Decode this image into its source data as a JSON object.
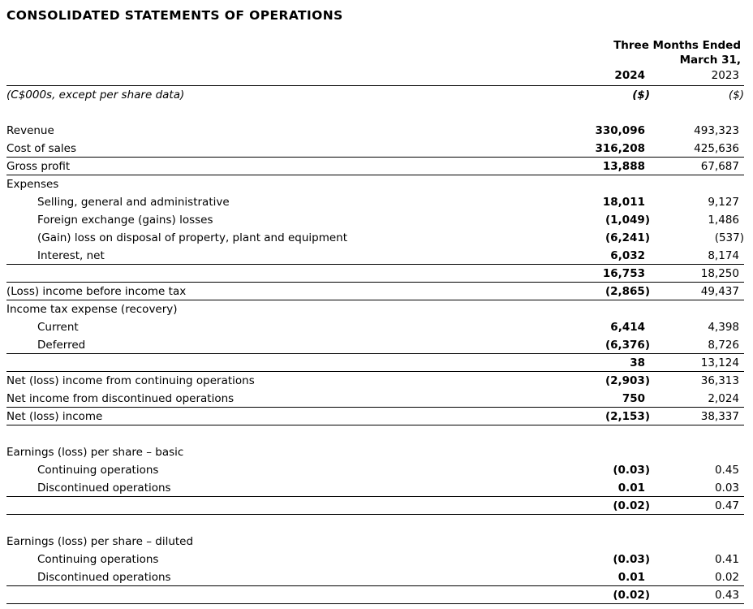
{
  "title": "CONSOLIDATED STATEMENTS OF OPERATIONS",
  "colors": {
    "text": "#000000",
    "rule": "#000000",
    "background": "#ffffff"
  },
  "header": {
    "period_line1": "Three Months Ended",
    "period_line2": "March 31,",
    "year_2024": "2024",
    "year_2023": "2023",
    "unit_note": "(C$000s, except per share data)",
    "currency_2024": "($)",
    "currency_2023": "($)"
  },
  "table": {
    "columns": [
      "line_item",
      "2024",
      "2023"
    ],
    "rows": [
      {
        "label": "Revenue",
        "v2024": "330,096",
        "v2023": "493,323",
        "indent": 0,
        "rule": false
      },
      {
        "label": "Cost of sales",
        "v2024": "316,208",
        "v2023": "425,636",
        "indent": 0,
        "rule": true
      },
      {
        "label": "Gross profit",
        "v2024": "13,888",
        "v2023": "67,687",
        "indent": 0,
        "rule": true
      },
      {
        "label": "Expenses",
        "v2024": "",
        "v2023": "",
        "indent": 0,
        "rule": false
      },
      {
        "label": "Selling, general and administrative",
        "v2024": "18,011",
        "v2023": "9,127",
        "indent": 1,
        "rule": false
      },
      {
        "label": "Foreign exchange (gains) losses",
        "v2024": "(1,049)",
        "v2023": "1,486",
        "indent": 1,
        "rule": false
      },
      {
        "label": "(Gain) loss on disposal of property, plant and equipment",
        "v2024": "(6,241)",
        "v2023": "(537)",
        "indent": 1,
        "rule": false
      },
      {
        "label": "Interest, net",
        "v2024": "6,032",
        "v2023": "8,174",
        "indent": 1,
        "rule": true
      },
      {
        "label": "",
        "v2024": "16,753",
        "v2023": "18,250",
        "indent": 0,
        "rule": true
      },
      {
        "label": "(Loss) income before income tax",
        "v2024": "(2,865)",
        "v2023": "49,437",
        "indent": 0,
        "rule": true
      },
      {
        "label": "Income tax expense (recovery)",
        "v2024": "",
        "v2023": "",
        "indent": 0,
        "rule": false
      },
      {
        "label": "Current",
        "v2024": "6,414",
        "v2023": "4,398",
        "indent": 1,
        "rule": false
      },
      {
        "label": "Deferred",
        "v2024": "(6,376)",
        "v2023": "8,726",
        "indent": 1,
        "rule": true
      },
      {
        "label": "",
        "v2024": "38",
        "v2023": "13,124",
        "indent": 0,
        "rule": true
      },
      {
        "label": "Net (loss) income from continuing operations",
        "v2024": "(2,903)",
        "v2023": "36,313",
        "indent": 0,
        "rule": false
      },
      {
        "label": "Net income from discontinued operations",
        "v2024": "750",
        "v2023": "2,024",
        "indent": 0,
        "rule": true
      },
      {
        "label": "Net (loss) income",
        "v2024": "(2,153)",
        "v2023": "38,337",
        "indent": 0,
        "rule": true
      },
      {
        "type": "spacer"
      },
      {
        "label": "Earnings (loss) per share – basic",
        "v2024": "",
        "v2023": "",
        "indent": 0,
        "rule": false
      },
      {
        "label": "Continuing operations",
        "v2024": "(0.03)",
        "v2023": "0.45",
        "indent": 1,
        "rule": false
      },
      {
        "label": "Discontinued operations",
        "v2024": "0.01",
        "v2023": "0.03",
        "indent": 1,
        "rule": true
      },
      {
        "label": "",
        "v2024": "(0.02)",
        "v2023": "0.47",
        "indent": 0,
        "rule": true
      },
      {
        "type": "spacer"
      },
      {
        "label": "Earnings (loss) per share – diluted",
        "v2024": "",
        "v2023": "",
        "indent": 0,
        "rule": false
      },
      {
        "label": "Continuing operations",
        "v2024": "(0.03)",
        "v2023": "0.41",
        "indent": 1,
        "rule": false
      },
      {
        "label": "Discontinued operations",
        "v2024": "0.01",
        "v2023": "0.02",
        "indent": 1,
        "rule": true
      },
      {
        "label": "",
        "v2024": "(0.02)",
        "v2023": "0.43",
        "indent": 0,
        "rule": true
      }
    ]
  }
}
